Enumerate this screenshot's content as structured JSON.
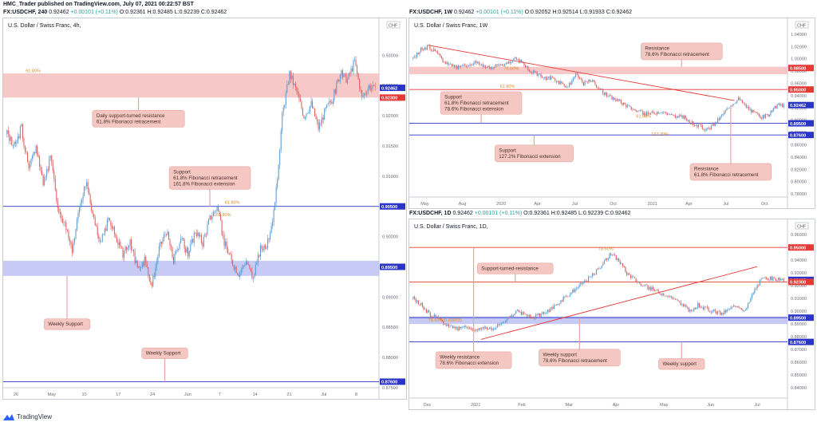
{
  "header": {
    "publisher_line": "HMC_Trader published on TradingView.com, July 07, 2021 00:22:57 BST",
    "left": {
      "symbol": "FX:USDCHF, 240",
      "o": "O:0.92361",
      "h": "H:0.92485",
      "l": "L:0.92239",
      "c": "C:0.92462",
      "price": "0.92462",
      "change": "+0.00101 (+0.11%)"
    },
    "right_top": {
      "symbol": "FX:USDCHF, 1W",
      "price": "0.92462",
      "change": "+0.00101 (+0.11%)",
      "o": "O:0.92052",
      "h": "H:0.92514",
      "l": "L:0.91933",
      "c": "C:0.92462"
    },
    "right_bottom": {
      "symbol": "FX:USDCHF, 1D",
      "price": "0.92462",
      "change": "+0.00101 (+0.11%)",
      "o": "O:0.92361",
      "h": "H:0.92485",
      "l": "L:0.92239",
      "c": "C:0.92462"
    }
  },
  "brand": "TradingView",
  "colors": {
    "up": "#5b9bd5",
    "down": "#e06060",
    "resistance_zone": "#f4b6b6",
    "support_zone": "#b3b8f0",
    "callout": "#f4c7c3",
    "blue_line": "#2a35c8",
    "red_line": "#e53935",
    "fib": "#d98b2b"
  },
  "chart_data": [
    {
      "id": "h4",
      "type": "candlestick",
      "title": "U.S. Dollar / Swiss Franc, 4h,",
      "currency": "CHF",
      "ylim": [
        0.875,
        0.934
      ],
      "y_ticks": [
        "0.93000",
        "0.92500",
        "0.92000",
        "0.91500",
        "0.91000",
        "0.90500",
        "0.90000",
        "0.89500",
        "0.89000",
        "0.88500",
        "0.88000",
        "0.87500"
      ],
      "x_ticks": [
        "26",
        "May",
        "10",
        "17",
        "24",
        "Jun",
        "7",
        "14",
        "21",
        "Jul",
        "8"
      ],
      "path": [
        0.917,
        0.915,
        0.918,
        0.911,
        0.915,
        0.909,
        0.913,
        0.905,
        0.902,
        0.898,
        0.905,
        0.909,
        0.903,
        0.899,
        0.903,
        0.9,
        0.897,
        0.899,
        0.895,
        0.896,
        0.892,
        0.898,
        0.901,
        0.896,
        0.9,
        0.897,
        0.901,
        0.899,
        0.903,
        0.905,
        0.899,
        0.896,
        0.894,
        0.896,
        0.893,
        0.898,
        0.899,
        0.905,
        0.92,
        0.927,
        0.924,
        0.92,
        0.922,
        0.918,
        0.921,
        0.923,
        0.927,
        0.926,
        0.929,
        0.923,
        0.925,
        0.924
      ],
      "price_labels": [
        {
          "text": "0.92462",
          "price": 0.92462,
          "color": "#2a35c8"
        },
        {
          "text": "0.92300",
          "price": 0.923,
          "color": "#e53935"
        },
        {
          "text": "0.90500",
          "price": 0.905,
          "color": "#2a35c8"
        },
        {
          "text": "0.89500",
          "price": 0.895,
          "color": "#2a35c8"
        },
        {
          "text": "0.87600",
          "price": 0.876,
          "color": "#2a35c8"
        }
      ],
      "zones": [
        {
          "from": 0.923,
          "to": 0.927,
          "kind": "resistance"
        },
        {
          "from": 0.8935,
          "to": 0.896,
          "kind": "support"
        }
      ],
      "lines": [
        {
          "price": 0.905,
          "color": "#2a35c8"
        },
        {
          "price": 0.876,
          "color": "#2a35c8"
        }
      ],
      "fib_labels": [
        {
          "text": "61.80%",
          "price": 0.927,
          "x": 0.06
        },
        {
          "text": "61.80%",
          "price": 0.9052,
          "x": 0.59
        },
        {
          "text": "161.80%",
          "price": 0.9032,
          "x": 0.56
        }
      ],
      "callouts": [
        {
          "lines": [
            "Daily support-turned resistance",
            "61.8% Fibonacci retracement"
          ],
          "price": 0.9195,
          "x": 0.36,
          "ptr": "up",
          "ptr_price": 0.923
        },
        {
          "lines": [
            "Support",
            "61.8% Fibonacci retracement",
            "161.8% Fibonacci extension"
          ],
          "price": 0.9097,
          "x": 0.55,
          "ptr": "down",
          "ptr_price": 0.905
        },
        {
          "lines": [
            "Weekly Support"
          ],
          "price": 0.8855,
          "x": 0.17,
          "ptr": "up",
          "ptr_price": 0.8935
        },
        {
          "lines": [
            "Weekly Support"
          ],
          "price": 0.8807,
          "x": 0.43,
          "ptr": "down",
          "ptr_price": 0.876
        }
      ]
    },
    {
      "id": "w1",
      "type": "candlestick",
      "title": "U.S. Dollar / Swiss Franc, 1W",
      "currency": "CHF",
      "ylim": [
        0.775,
        1.045
      ],
      "y_ticks": [
        "1.04000",
        "1.02000",
        "1.00000",
        "0.98000",
        "0.96000",
        "0.94000",
        "0.92000",
        "0.90000",
        "0.88000",
        "0.86000",
        "0.84000",
        "0.82000",
        "0.80000",
        "0.78000"
      ],
      "x_ticks": [
        "May",
        "Aug",
        "2020",
        "Apr",
        "Jul",
        "Oct",
        "2021",
        "Apr",
        "Jul",
        "Oct"
      ],
      "path": [
        1.0,
        1.015,
        1.02,
        1.01,
        0.995,
        0.99,
        0.985,
        0.99,
        0.995,
        0.99,
        0.985,
        0.99,
        0.993,
        1.0,
        0.995,
        0.98,
        0.975,
        0.968,
        0.97,
        0.96,
        0.955,
        0.975,
        0.96,
        0.965,
        0.952,
        0.94,
        0.935,
        0.928,
        0.92,
        0.915,
        0.91,
        0.912,
        0.915,
        0.91,
        0.905,
        0.905,
        0.895,
        0.89,
        0.885,
        0.895,
        0.91,
        0.925,
        0.935,
        0.922,
        0.912,
        0.905,
        0.91,
        0.925,
        0.924
      ],
      "price_labels": [
        {
          "text": "0.98500",
          "price": 0.985,
          "color": "#e53935"
        },
        {
          "text": "0.95000",
          "price": 0.95,
          "color": "#e53935"
        },
        {
          "text": "0.92462",
          "price": 0.92462,
          "color": "#2a35c8"
        },
        {
          "text": "0.89500",
          "price": 0.895,
          "color": "#2a35c8"
        },
        {
          "text": "0.87600",
          "price": 0.876,
          "color": "#2a35c8"
        }
      ],
      "zones": [
        {
          "from": 0.975,
          "to": 0.987,
          "kind": "resistance"
        }
      ],
      "lines": [
        {
          "price": 0.95,
          "color": "#e53935"
        },
        {
          "price": 0.895,
          "color": "#2a35c8"
        },
        {
          "price": 0.876,
          "color": "#2a35c8"
        }
      ],
      "trend": {
        "x1": 0.05,
        "p1": 1.022,
        "x2": 0.86,
        "p2": 0.932
      },
      "fib_labels": [
        {
          "text": "78.60%",
          "price": 0.98,
          "x": 0.25
        },
        {
          "text": "61.80%",
          "price": 0.951,
          "x": 0.24
        },
        {
          "text": "61.80%",
          "price": 0.902,
          "x": 0.6
        },
        {
          "text": "127.20%",
          "price": 0.873,
          "x": 0.64
        }
      ],
      "callouts": [
        {
          "lines": [
            "Resistance",
            "78.6% Fibonacci retracement"
          ],
          "price": 1.012,
          "x": 0.72,
          "ptr": "down",
          "ptr_price": 0.987
        },
        {
          "lines": [
            "Support",
            "61.8% Fibonacci retracement",
            "78.6% Fibonacci extension"
          ],
          "price": 0.928,
          "x": 0.19,
          "ptr": "down",
          "ptr_price": 0.895
        },
        {
          "lines": [
            "Support",
            "127.2% Fibonacci extension"
          ],
          "price": 0.846,
          "x": 0.33,
          "ptr": "up",
          "ptr_price": 0.876
        },
        {
          "lines": [
            "Resistance",
            "61.8% Fibonacci retracement"
          ],
          "price": 0.816,
          "x": 0.85,
          "ptr": "up",
          "ptr_price": 0.925
        }
      ]
    },
    {
      "id": "d1",
      "type": "candlestick",
      "title": "U.S. Dollar / Swiss Franc, 1D,",
      "currency": "CHF",
      "ylim": [
        0.832,
        0.962
      ],
      "y_ticks": [
        "0.96000",
        "0.95000",
        "0.94000",
        "0.93000",
        "0.92000",
        "0.91000",
        "0.90000",
        "0.89000",
        "0.88000",
        "0.87000",
        "0.86000",
        "0.85000",
        "0.84000"
      ],
      "x_ticks": [
        "Dec",
        "2021",
        "Feb",
        "Mar",
        "Apr",
        "May",
        "Jun",
        "Jul"
      ],
      "path": [
        0.91,
        0.905,
        0.898,
        0.895,
        0.89,
        0.888,
        0.886,
        0.888,
        0.885,
        0.888,
        0.886,
        0.89,
        0.895,
        0.9,
        0.898,
        0.895,
        0.897,
        0.9,
        0.905,
        0.91,
        0.915,
        0.92,
        0.925,
        0.93,
        0.938,
        0.945,
        0.94,
        0.93,
        0.925,
        0.92,
        0.918,
        0.915,
        0.913,
        0.91,
        0.905,
        0.9,
        0.905,
        0.902,
        0.9,
        0.898,
        0.902,
        0.905,
        0.9,
        0.915,
        0.925,
        0.926,
        0.925,
        0.924
      ],
      "price_labels": [
        {
          "text": "0.95000",
          "price": 0.95,
          "color": "#e53935"
        },
        {
          "text": "0.92462",
          "price": 0.92462,
          "color": "#2a35c8"
        },
        {
          "text": "0.92300",
          "price": 0.923,
          "color": "#e53935"
        },
        {
          "text": "0.89500",
          "price": 0.895,
          "color": "#2a35c8"
        },
        {
          "text": "0.87600",
          "price": 0.876,
          "color": "#2a35c8"
        }
      ],
      "zones": [
        {
          "from": 0.89,
          "to": 0.896,
          "kind": "support"
        }
      ],
      "lines": [
        {
          "price": 0.95,
          "color": "#e53935"
        },
        {
          "price": 0.923,
          "color": "#e53935"
        },
        {
          "price": 0.895,
          "color": "#2a35c8"
        },
        {
          "price": 0.876,
          "color": "#2a35c8"
        }
      ],
      "trend": {
        "x1": 0.19,
        "p1": 0.878,
        "x2": 0.92,
        "p2": 0.935
      },
      "fib_labels": [
        {
          "text": "78.60%",
          "price": 0.947,
          "x": 0.5
        },
        {
          "text": "78.60%(0.89079)",
          "price": 0.891,
          "x": 0.05
        }
      ],
      "callouts": [
        {
          "lines": [
            "Support-turned-resistance"
          ],
          "price": 0.9335,
          "x": 0.28,
          "ptr": "down",
          "ptr_price": 0.923
        },
        {
          "lines": [
            "Weekly resistance",
            "78.6% Fibonacci extension"
          ],
          "price": 0.8617,
          "x": 0.17,
          "ptr": "up",
          "ptr_price": 0.95
        },
        {
          "lines": [
            "Weekly support",
            "78.6% Fibonacci retracement"
          ],
          "price": 0.8637,
          "x": 0.45,
          "ptr": "up",
          "ptr_price": 0.895
        },
        {
          "lines": [
            "Weekly support"
          ],
          "price": 0.8587,
          "x": 0.72,
          "ptr": "up",
          "ptr_price": 0.876
        }
      ]
    }
  ]
}
